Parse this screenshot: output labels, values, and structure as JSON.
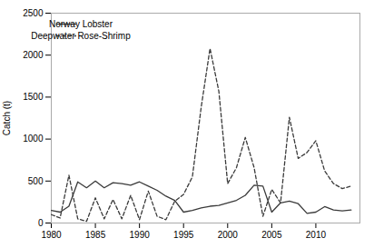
{
  "chart_data": {
    "type": "line",
    "ylabel": "Catch (t)",
    "x": [
      1980,
      1981,
      1982,
      1983,
      1984,
      1985,
      1986,
      1987,
      1988,
      1989,
      1990,
      1991,
      1992,
      1993,
      1994,
      1995,
      1996,
      1997,
      1998,
      1999,
      2000,
      2001,
      2002,
      2003,
      2004,
      2005,
      2006,
      2007,
      2008,
      2009,
      2010,
      2011,
      2012,
      2013,
      2014
    ],
    "series": [
      {
        "name": "Norway Lobster",
        "color": "#3a3a3a",
        "line_style": "solid",
        "values": [
          150,
          130,
          200,
          490,
          420,
          500,
          420,
          480,
          470,
          450,
          490,
          440,
          390,
          320,
          270,
          130,
          150,
          180,
          200,
          210,
          240,
          270,
          330,
          450,
          440,
          130,
          240,
          260,
          230,
          115,
          130,
          195,
          155,
          145,
          155
        ]
      },
      {
        "name": "Deepwater Rose-Shrimp",
        "color": "#3a3a3a",
        "line_style": "dashed",
        "values": [
          100,
          60,
          570,
          50,
          20,
          300,
          50,
          280,
          50,
          330,
          40,
          380,
          80,
          40,
          260,
          340,
          550,
          1380,
          2080,
          1570,
          470,
          660,
          1020,
          660,
          80,
          400,
          240,
          1260,
          770,
          840,
          980,
          620,
          470,
          410,
          440
        ]
      }
    ],
    "xlim": [
      1980,
      2015
    ],
    "ylim": [
      0,
      2500
    ],
    "xticks": [
      1980,
      1985,
      1990,
      1995,
      2000,
      2005,
      2010
    ],
    "yticks": [
      0,
      500,
      1000,
      1500,
      2000,
      2500
    ],
    "legend": "upper left",
    "grid": false
  }
}
